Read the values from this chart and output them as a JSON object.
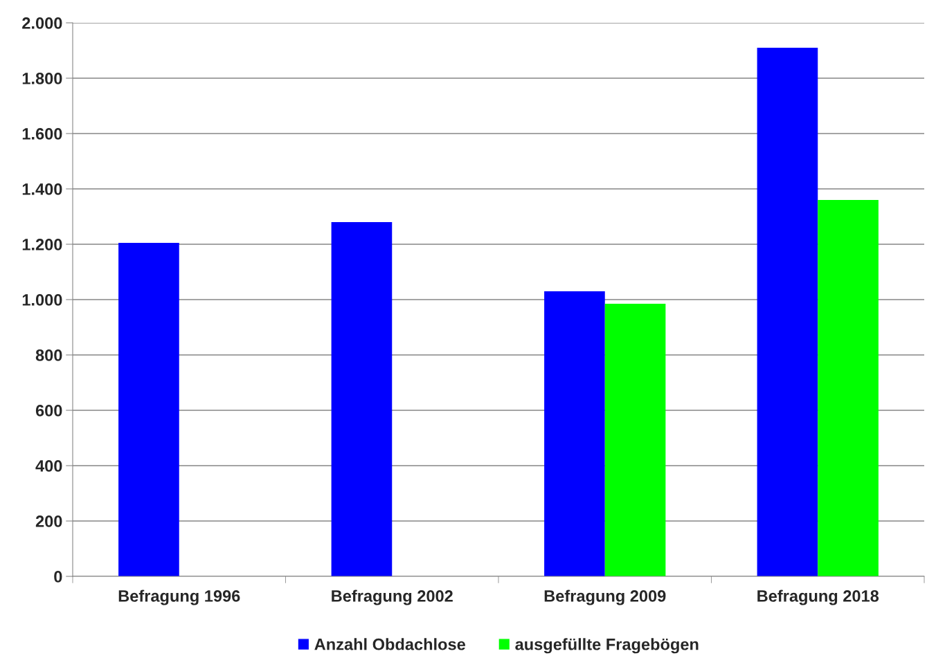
{
  "chart_data": {
    "type": "bar",
    "categories": [
      "Befragung 1996",
      "Befragung 2002",
      "Befragung 2009",
      "Befragung 2018"
    ],
    "series": [
      {
        "name": "Anzahl Obdachlose",
        "color": "#0000ff",
        "values": [
          1205,
          1280,
          1030,
          1910
        ]
      },
      {
        "name": "ausgefüllte Fragebögen",
        "color": "#00ff00",
        "values": [
          null,
          null,
          985,
          1360
        ]
      }
    ],
    "ylim": [
      0,
      2000
    ],
    "yticks": [
      {
        "value": 0,
        "label": "0"
      },
      {
        "value": 200,
        "label": "200"
      },
      {
        "value": 400,
        "label": "400"
      },
      {
        "value": 600,
        "label": "600"
      },
      {
        "value": 800,
        "label": "800"
      },
      {
        "value": 1000,
        "label": "1.000"
      },
      {
        "value": 1200,
        "label": "1.200"
      },
      {
        "value": 1400,
        "label": "1.400"
      },
      {
        "value": 1600,
        "label": "1.600"
      },
      {
        "value": 1800,
        "label": "1.800"
      },
      {
        "value": 2000,
        "label": "2.000"
      }
    ],
    "grid": "y",
    "legend": "bottom"
  }
}
